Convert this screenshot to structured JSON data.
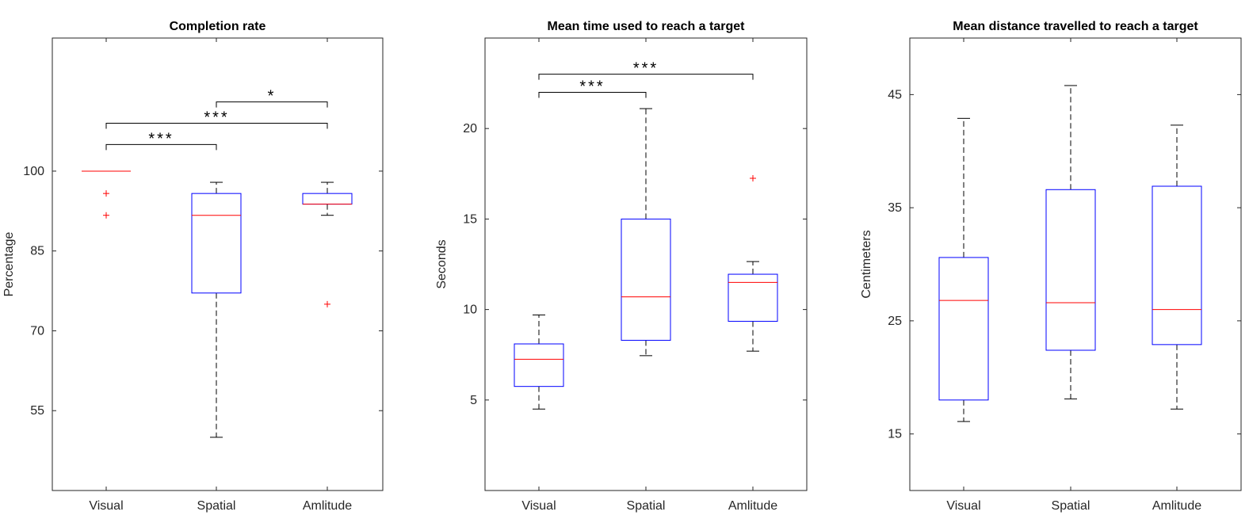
{
  "chart_data": [
    {
      "type": "box",
      "title": "Completion rate",
      "xlabel": "",
      "ylabel": "Percentage",
      "categories": [
        "Visual",
        "Spatial",
        "Amlitude"
      ],
      "ylim": [
        40,
        125
      ],
      "yticks": [
        55,
        70,
        85,
        100
      ],
      "box_color": "#0000ff",
      "median_color": "#ff0000",
      "outlier_color": "#ff0000",
      "boxes": [
        {
          "category": "Visual",
          "whisker_low": 100,
          "q1": 100,
          "median": 100,
          "q3": 100,
          "whisker_high": 100,
          "outliers": [
            95.8,
            91.7
          ]
        },
        {
          "category": "Spatial",
          "whisker_low": 50,
          "q1": 77.1,
          "median": 91.7,
          "q3": 95.8,
          "whisker_high": 97.9,
          "outliers": []
        },
        {
          "category": "Amlitude",
          "whisker_low": 91.7,
          "q1": 93.8,
          "median": 93.8,
          "q3": 95.8,
          "whisker_high": 97.9,
          "outliers": [
            75
          ]
        }
      ],
      "significance": [
        {
          "from": 0,
          "to": 1,
          "y": 105,
          "label": "***"
        },
        {
          "from": 0,
          "to": 2,
          "y": 109,
          "label": "***"
        },
        {
          "from": 1,
          "to": 2,
          "y": 113,
          "label": "*"
        }
      ]
    },
    {
      "type": "box",
      "title": "Mean time used to reach a target",
      "xlabel": "",
      "ylabel": "Seconds",
      "categories": [
        "Visual",
        "Spatial",
        "Amlitude"
      ],
      "ylim": [
        0,
        25
      ],
      "yticks": [
        5,
        10,
        15,
        20
      ],
      "box_color": "#0000ff",
      "median_color": "#ff0000",
      "outlier_color": "#ff0000",
      "boxes": [
        {
          "category": "Visual",
          "whisker_low": 4.5,
          "q1": 5.75,
          "median": 7.25,
          "q3": 8.1,
          "whisker_high": 9.7,
          "outliers": []
        },
        {
          "category": "Spatial",
          "whisker_low": 7.45,
          "q1": 8.3,
          "median": 10.7,
          "q3": 15.0,
          "whisker_high": 21.1,
          "outliers": []
        },
        {
          "category": "Amlitude",
          "whisker_low": 7.7,
          "q1": 9.35,
          "median": 11.5,
          "q3": 11.95,
          "whisker_high": 12.65,
          "outliers": [
            17.25
          ]
        }
      ],
      "significance": [
        {
          "from": 0,
          "to": 1,
          "y": 22.0,
          "label": "***"
        },
        {
          "from": 0,
          "to": 2,
          "y": 23.0,
          "label": "***"
        }
      ]
    },
    {
      "type": "box",
      "title": "Mean distance travelled to reach a target",
      "xlabel": "",
      "ylabel": "Centimeters",
      "categories": [
        "Visual",
        "Spatial",
        "Amlitude"
      ],
      "ylim": [
        10,
        50
      ],
      "yticks": [
        15,
        25,
        35,
        45
      ],
      "box_color": "#0000ff",
      "median_color": "#ff0000",
      "outlier_color": "#ff0000",
      "boxes": [
        {
          "category": "Visual",
          "whisker_low": 16.1,
          "q1": 18.0,
          "median": 26.8,
          "q3": 30.6,
          "whisker_high": 42.9,
          "outliers": []
        },
        {
          "category": "Spatial",
          "whisker_low": 18.1,
          "q1": 22.4,
          "median": 26.6,
          "q3": 36.6,
          "whisker_high": 45.8,
          "outliers": []
        },
        {
          "category": "Amlitude",
          "whisker_low": 17.2,
          "q1": 22.9,
          "median": 26.0,
          "q3": 36.9,
          "whisker_high": 42.3,
          "outliers": []
        }
      ],
      "significance": []
    }
  ]
}
